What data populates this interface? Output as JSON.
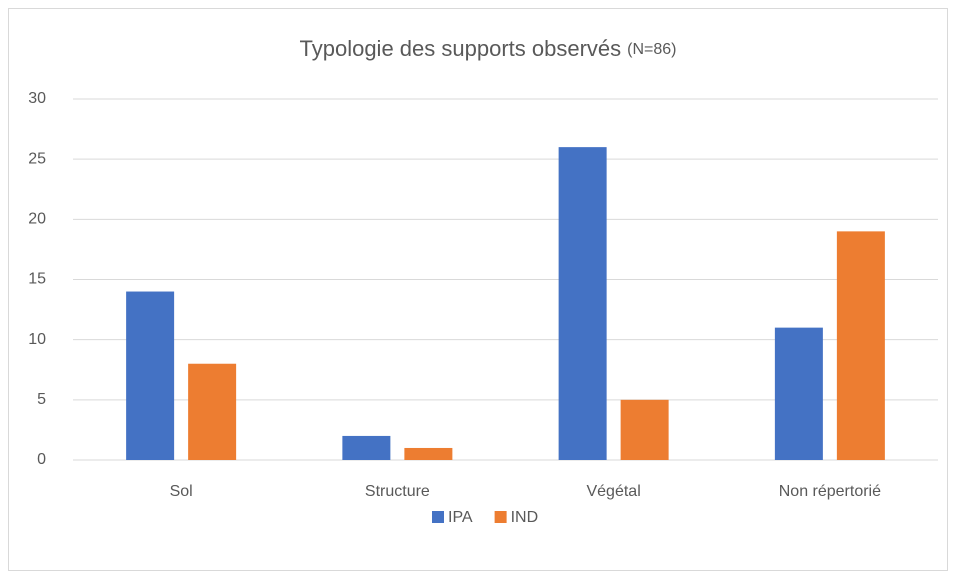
{
  "chart_data": {
    "type": "bar",
    "title": "Typologie des supports observés",
    "title_note": "(N=86)",
    "categories": [
      "Sol",
      "Structure",
      "Végétal",
      "Non répertorié"
    ],
    "series": [
      {
        "name": "IPA",
        "color": "#4472c4",
        "values": [
          14,
          2,
          26,
          11
        ]
      },
      {
        "name": "IND",
        "color": "#ed7d31",
        "values": [
          8,
          1,
          5,
          19
        ]
      }
    ],
    "ylim": [
      0,
      30
    ],
    "yticks": [
      0,
      5,
      10,
      15,
      20,
      25,
      30
    ],
    "grid": true,
    "legend": "bottom"
  }
}
